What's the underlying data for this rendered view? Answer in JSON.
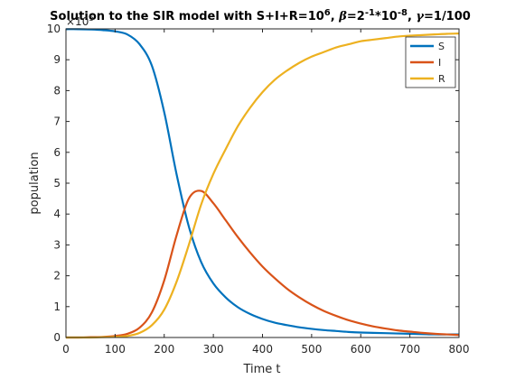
{
  "chart_data": {
    "type": "line",
    "title": {
      "prefix": "Solution to the SIR model with S+I+R=10",
      "prefix_sup": "6",
      "beta_symbol": "β",
      "beta_text": "=2",
      "beta_sup1": "-1",
      "beta_mid": "*10",
      "beta_sup2": "-8",
      "gamma_symbol": "γ",
      "gamma_text": "=1/100"
    },
    "xlabel": "Time t",
    "ylabel": "population",
    "y_exponent_base": "×10",
    "y_exponent": "5",
    "xlim": [
      0,
      800
    ],
    "ylim": [
      0,
      10
    ],
    "x_ticks": [
      "0",
      "100",
      "200",
      "300",
      "400",
      "500",
      "600",
      "700",
      "800"
    ],
    "y_ticks": [
      "0",
      "1",
      "2",
      "3",
      "4",
      "5",
      "6",
      "7",
      "8",
      "9",
      "10"
    ],
    "legend_position": "top-right",
    "grid": false,
    "x": [
      0,
      25,
      50,
      75,
      100,
      125,
      150,
      175,
      200,
      225,
      250,
      275,
      300,
      325,
      350,
      375,
      400,
      425,
      450,
      475,
      500,
      525,
      550,
      575,
      600,
      625,
      650,
      675,
      700,
      725,
      750,
      775,
      800
    ],
    "series": [
      {
        "name": "S",
        "color": "#0072BD",
        "values": [
          9.99,
          9.99,
          9.98,
          9.96,
          9.92,
          9.82,
          9.5,
          8.8,
          7.3,
          5.3,
          3.6,
          2.45,
          1.75,
          1.3,
          0.98,
          0.76,
          0.6,
          0.48,
          0.4,
          0.33,
          0.28,
          0.24,
          0.21,
          0.18,
          0.16,
          0.15,
          0.14,
          0.13,
          0.12,
          0.11,
          0.1,
          0.1,
          0.1
        ]
      },
      {
        "name": "I",
        "color": "#D95319",
        "values": [
          0.0,
          0.0,
          0.01,
          0.02,
          0.05,
          0.12,
          0.32,
          0.82,
          1.85,
          3.3,
          4.5,
          4.75,
          4.35,
          3.8,
          3.25,
          2.75,
          2.3,
          1.92,
          1.58,
          1.3,
          1.06,
          0.86,
          0.7,
          0.56,
          0.45,
          0.36,
          0.29,
          0.23,
          0.19,
          0.15,
          0.12,
          0.1,
          0.08
        ]
      },
      {
        "name": "R",
        "color": "#EDB120",
        "values": [
          0.0,
          0.0,
          0.0,
          0.01,
          0.02,
          0.05,
          0.15,
          0.4,
          0.9,
          1.8,
          3.0,
          4.3,
          5.3,
          6.1,
          6.85,
          7.45,
          7.95,
          8.35,
          8.65,
          8.9,
          9.1,
          9.25,
          9.4,
          9.5,
          9.6,
          9.65,
          9.7,
          9.75,
          9.78,
          9.8,
          9.82,
          9.84,
          9.85
        ]
      }
    ]
  }
}
